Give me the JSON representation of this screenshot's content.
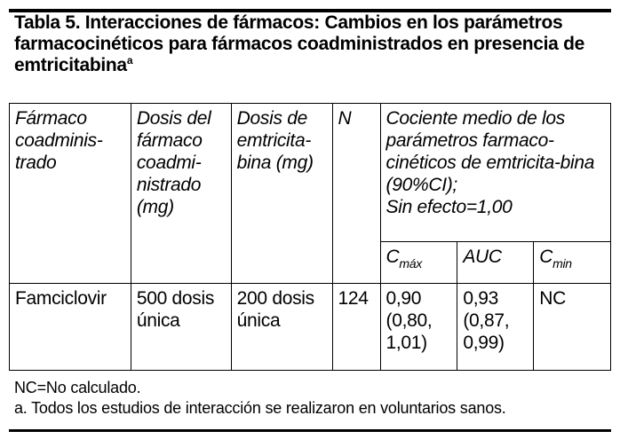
{
  "title": {
    "text": "Tabla 5. Interacciones de fármacos: Cambios en los parámetros farmacocinéticos para fármacos coadministrados en presencia de emtricitabina",
    "superscript": "a"
  },
  "table": {
    "headers": {
      "drug": "Fármaco coadminis-trado",
      "drug_dose": "Dosis del fármaco coadmi-nistrado (mg)",
      "emtricitabine_dose": "Dosis de emtricita-bina (mg)",
      "n": "N",
      "ratio_line1": "Cociente medio de los parámetros farmaco-cinéticos de emtricita-bina (90%CI);",
      "ratio_line2": "Sin efecto=1,00",
      "cmax_base": "C",
      "cmax_sub": "máx",
      "auc": "AUC",
      "cmin_base": "C",
      "cmin_sub": "min"
    },
    "rows": [
      {
        "drug": "Famciclovir",
        "drug_dose": "500 dosis única",
        "emtricitabine_dose": "200 dosis única",
        "n": "124",
        "cmax_value": "0,90",
        "cmax_ci": "(0,80, 1,01)",
        "auc_value": "0,93",
        "auc_ci": "(0,87, 0,99)",
        "cmin": "NC"
      }
    ]
  },
  "footnotes": {
    "nc": "NC=No calculado.",
    "a": "a. Todos los estudios de interacción se realizaron en voluntarios sanos."
  }
}
